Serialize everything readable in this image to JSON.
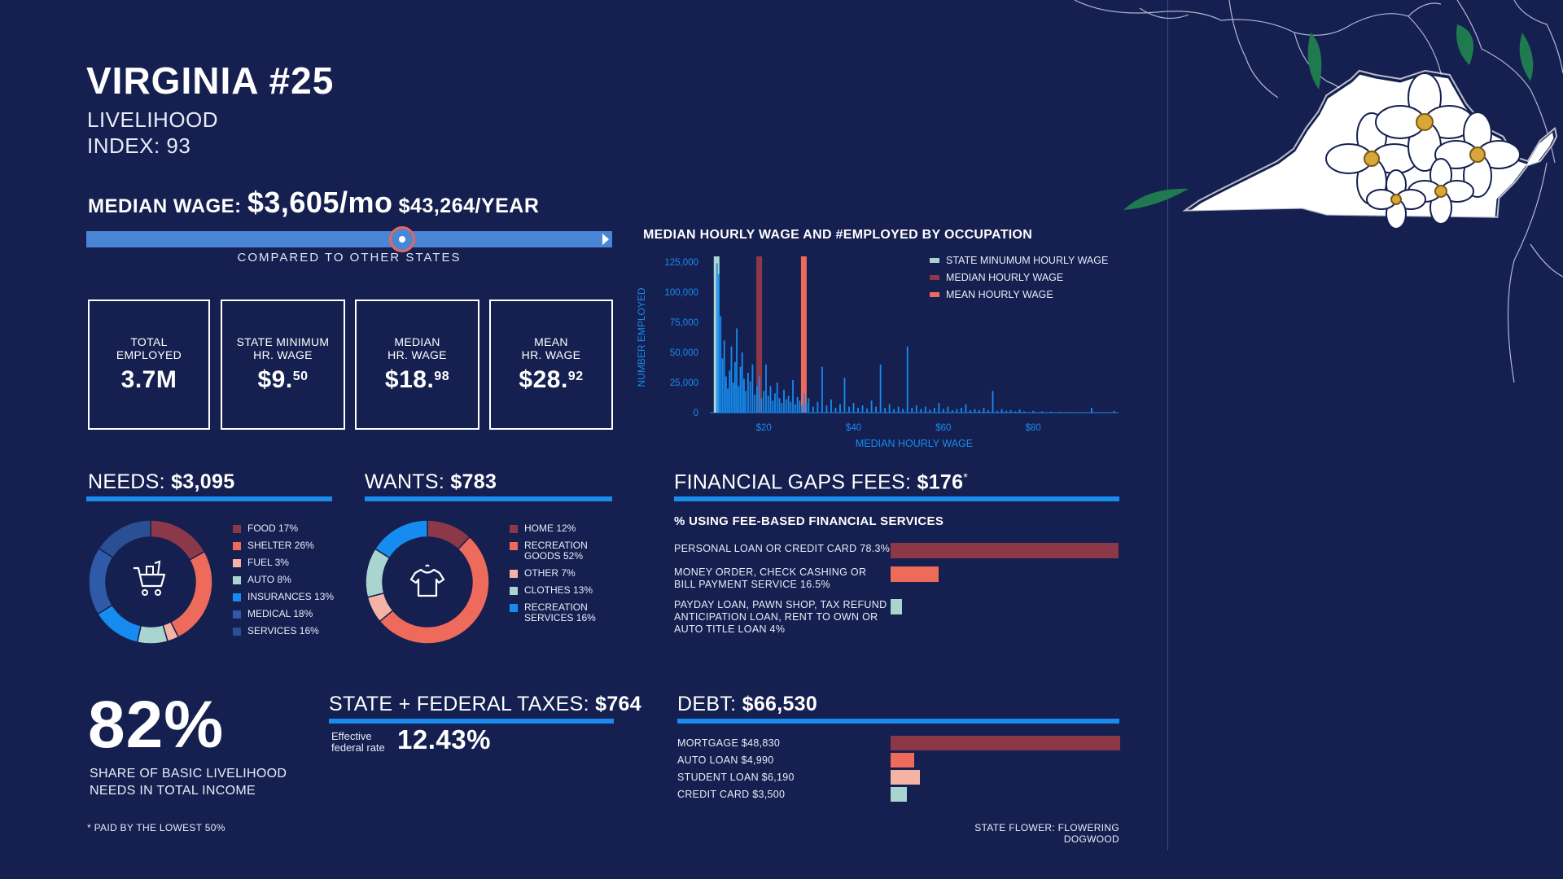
{
  "header": {
    "title": "VIRGINIA #25",
    "subtitle_line1": "LIVELIHOOD",
    "subtitle_line2": "INDEX: 93"
  },
  "median_wage": {
    "label": "MEDIAN WAGE:",
    "monthly": "$3,605/mo",
    "yearly": "$43,264/YEAR",
    "compare_label": "COMPARED TO OTHER STATES",
    "compare_position": 0.6
  },
  "kpis": [
    {
      "label1": "TOTAL",
      "label2": "EMPLOYED",
      "value": "3.7M",
      "sup": ""
    },
    {
      "label1": "STATE MINIMUM",
      "label2": "HR. WAGE",
      "value": "$9.",
      "sup": "50"
    },
    {
      "label1": "MEDIAN",
      "label2": "HR. WAGE",
      "value": "$18.",
      "sup": "98"
    },
    {
      "label1": "MEAN",
      "label2": "HR. WAGE",
      "value": "$28.",
      "sup": "92"
    }
  ],
  "needs": {
    "label": "NEEDS:",
    "value": "$3,095"
  },
  "wants": {
    "label": "WANTS:",
    "value": "$783"
  },
  "fees": {
    "label": "FINANCIAL GAPS FEES:",
    "value": "$176",
    "mark": "*",
    "subhead": "% USING FEE-BASED FINANCIAL SERVICES"
  },
  "taxes": {
    "label": "STATE + FEDERAL TAXES:",
    "value": "$764",
    "rate_label1": "Effective",
    "rate_label2": "federal rate",
    "rate": "12.43%"
  },
  "debt": {
    "label": "DEBT:",
    "value": "$66,530"
  },
  "share": {
    "value": "82%",
    "line1": "SHARE OF BASIC LIVELIHOOD",
    "line2": "NEEDS IN TOTAL INCOME"
  },
  "footnote": "* PAID BY THE LOWEST 50%",
  "state_flower": "STATE FLOWER: FLOWERING DOGWOOD",
  "colors": {
    "background": "#152050",
    "accent_blue": "#1a8cf0",
    "bar_blue": "#4a86d6",
    "maroon": "#8c3848",
    "coral": "#ee6a5a",
    "peach": "#f4b3a5",
    "mint": "#a9d4cf",
    "bright_blue": "#168cf0",
    "steel_blue": "#2e5aa8",
    "navy_blue": "#2a4f93"
  },
  "chart_data": [
    {
      "type": "bar",
      "title": "MEDIAN HOURLY WAGE AND #EMPLOYED BY OCCUPATION",
      "xlabel": "MEDIAN HOURLY WAGE",
      "ylabel": "NUMBER EMPLOYED",
      "xlim": [
        8,
        99
      ],
      "ylim": [
        0,
        125000
      ],
      "x_ticks": [
        "$20",
        "$40",
        "$60",
        "$80"
      ],
      "x_tick_values": [
        20,
        40,
        60,
        80
      ],
      "y_ticks": [
        "125,000",
        "100,000",
        "75,000",
        "50,000",
        "25,000",
        "0"
      ],
      "y_tick_values": [
        125000,
        100000,
        75000,
        50000,
        25000,
        0
      ],
      "legend": [
        {
          "name": "STATE MINUMUM HOURLY WAGE",
          "color": "#a9d4cf",
          "x": 9.5
        },
        {
          "name": "MEDIAN HOURLY WAGE",
          "color": "#8c3848",
          "x": 18.98
        },
        {
          "name": "MEAN HOURLY WAGE",
          "color": "#ee6a5a",
          "x": 28.92
        }
      ],
      "series": [
        {
          "name": "NUMBER EMPLOYED",
          "color": "#168cf0",
          "points": [
            [
              9.6,
              124000
            ],
            [
              10.0,
              115000
            ],
            [
              10.4,
              80000
            ],
            [
              10.8,
              45000
            ],
            [
              11.2,
              60000
            ],
            [
              11.6,
              30000
            ],
            [
              12.0,
              20000
            ],
            [
              12.4,
              35000
            ],
            [
              12.8,
              55000
            ],
            [
              13.2,
              25000
            ],
            [
              13.6,
              42000
            ],
            [
              14.0,
              70000
            ],
            [
              14.4,
              22000
            ],
            [
              14.8,
              38000
            ],
            [
              15.2,
              50000
            ],
            [
              15.6,
              28000
            ],
            [
              16.0,
              18000
            ],
            [
              16.5,
              33000
            ],
            [
              17.0,
              26000
            ],
            [
              17.5,
              40000
            ],
            [
              18.0,
              15000
            ],
            [
              18.5,
              22000
            ],
            [
              19.0,
              30000
            ],
            [
              19.5,
              12000
            ],
            [
              20.0,
              18000
            ],
            [
              20.5,
              40000
            ],
            [
              21.0,
              14000
            ],
            [
              21.5,
              22000
            ],
            [
              22.0,
              10000
            ],
            [
              22.5,
              16000
            ],
            [
              23.0,
              25000
            ],
            [
              23.5,
              12000
            ],
            [
              24.0,
              8000
            ],
            [
              24.5,
              19000
            ],
            [
              25.0,
              11000
            ],
            [
              25.5,
              14000
            ],
            [
              26.0,
              9000
            ],
            [
              26.5,
              27000
            ],
            [
              27.0,
              7000
            ],
            [
              27.5,
              13000
            ],
            [
              28.0,
              10000
            ],
            [
              28.5,
              6000
            ],
            [
              29.0,
              16000
            ],
            [
              29.5,
              8000
            ],
            [
              30.0,
              12000
            ],
            [
              31.0,
              5000
            ],
            [
              32.0,
              9000
            ],
            [
              33.0,
              38000
            ],
            [
              34.0,
              6000
            ],
            [
              35.0,
              11000
            ],
            [
              36.0,
              4000
            ],
            [
              37.0,
              7000
            ],
            [
              38.0,
              29000
            ],
            [
              39.0,
              5000
            ],
            [
              40.0,
              8000
            ],
            [
              41.0,
              4000
            ],
            [
              42.0,
              6000
            ],
            [
              43.0,
              3500
            ],
            [
              44.0,
              10000
            ],
            [
              45.0,
              5000
            ],
            [
              46.0,
              40000
            ],
            [
              47.0,
              4000
            ],
            [
              48.0,
              7000
            ],
            [
              49.0,
              3000
            ],
            [
              50.0,
              5000
            ],
            [
              51.0,
              3000
            ],
            [
              52.0,
              55000
            ],
            [
              53.0,
              4000
            ],
            [
              54.0,
              6000
            ],
            [
              55.0,
              3000
            ],
            [
              56.0,
              5000
            ],
            [
              57.0,
              2500
            ],
            [
              58.0,
              4000
            ],
            [
              59.0,
              8000
            ],
            [
              60.0,
              3000
            ],
            [
              61.0,
              5000
            ],
            [
              62.0,
              2000
            ],
            [
              63.0,
              3000
            ],
            [
              64.0,
              4000
            ],
            [
              65.0,
              7000
            ],
            [
              66.0,
              2000
            ],
            [
              67.0,
              3000
            ],
            [
              68.0,
              2000
            ],
            [
              69.0,
              4000
            ],
            [
              70.0,
              2000
            ],
            [
              71.0,
              18000
            ],
            [
              72.0,
              1500
            ],
            [
              73.0,
              3000
            ],
            [
              74.0,
              1500
            ],
            [
              75.0,
              2000
            ],
            [
              76.0,
              1000
            ],
            [
              77.0,
              2500
            ],
            [
              78.0,
              1000
            ],
            [
              80.0,
              1500
            ],
            [
              82.0,
              1000
            ],
            [
              84.0,
              800
            ],
            [
              86.0,
              600
            ],
            [
              88.0,
              500
            ],
            [
              90.0,
              400
            ],
            [
              93.0,
              4000
            ],
            [
              96.0,
              300
            ],
            [
              98.0,
              1500
            ]
          ]
        }
      ]
    },
    {
      "type": "pie",
      "title": "NEEDS: $3,095",
      "labels": [
        "FOOD 17%",
        "SHELTER 26%",
        "FUEL 3%",
        "AUTO 8%",
        "INSURANCES 13%",
        "MEDICAL 18%",
        "SERVICES 16%"
      ],
      "values": [
        17,
        26,
        3,
        8,
        13,
        18,
        16
      ],
      "colors": [
        "#8c3848",
        "#ee6a5a",
        "#f4b3a5",
        "#a9d4cf",
        "#168cf0",
        "#2e5aa8",
        "#2a4f93"
      ]
    },
    {
      "type": "pie",
      "title": "WANTS: $783",
      "labels": [
        "HOME 12%",
        "RECREATION GOODS 52%",
        "OTHER 7%",
        "CLOTHES 13%",
        "RECREATION SERVICES 16%"
      ],
      "legend_lines": [
        [
          "HOME 12%"
        ],
        [
          "RECREATION",
          "GOODS 52%"
        ],
        [
          "OTHER 7%"
        ],
        [
          "CLOTHES 13%"
        ],
        [
          "RECREATION",
          "SERVICES 16%"
        ]
      ],
      "values": [
        12,
        52,
        7,
        13,
        16
      ],
      "colors": [
        "#8c3848",
        "#ee6a5a",
        "#f4b3a5",
        "#a9d4cf",
        "#168cf0"
      ]
    },
    {
      "type": "bar",
      "title": "% USING FEE-BASED FINANCIAL SERVICES",
      "orientation": "horizontal",
      "categories": [
        "PERSONAL LOAN OR CREDIT CARD 78.3%",
        "MONEY ORDER, CHECK CASHING OR BILL PAYMENT SERVICE 16.5%",
        "PAYDAY LOAN, PAWN SHOP, TAX REFUND ANTICIPATION LOAN, RENT TO OWN OR AUTO TITLE LOAN 4%"
      ],
      "category_lines": [
        [
          "PERSONAL LOAN OR CREDIT CARD 78.3%"
        ],
        [
          "MONEY ORDER, CHECK CASHING OR",
          "BILL PAYMENT SERVICE 16.5%"
        ],
        [
          "PAYDAY LOAN, PAWN SHOP, TAX REFUND",
          "ANTICIPATION LOAN, RENT TO OWN OR",
          "AUTO TITLE LOAN 4%"
        ]
      ],
      "values": [
        78.3,
        16.5,
        4
      ],
      "colors": [
        "#8c3848",
        "#ee6a5a",
        "#a9d4cf"
      ]
    },
    {
      "type": "bar",
      "title": "DEBT: $66,530",
      "orientation": "horizontal",
      "categories": [
        "MORTGAGE $48,830",
        "AUTO LOAN $4,990",
        "STUDENT LOAN $6,190",
        "CREDIT CARD $3,500"
      ],
      "values": [
        48830,
        4990,
        6190,
        3500
      ],
      "colors": [
        "#8c3848",
        "#ee6a5a",
        "#f4b3a5",
        "#a9d4cf"
      ]
    }
  ]
}
